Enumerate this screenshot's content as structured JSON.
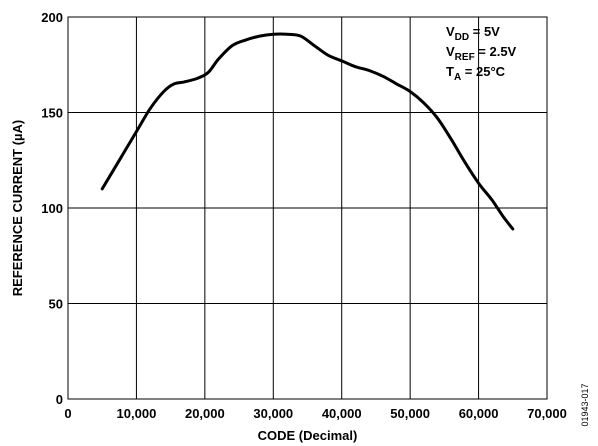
{
  "chart_data": {
    "type": "line",
    "xlabel": "CODE (Decimal)",
    "ylabel": "REFERENCE CURRENT (µA)",
    "xlim": [
      0,
      70000
    ],
    "ylim": [
      0,
      200
    ],
    "x_ticks": [
      0,
      10000,
      20000,
      30000,
      40000,
      50000,
      60000,
      70000
    ],
    "x_tick_labels": [
      "0",
      "10,000",
      "20,000",
      "30,000",
      "40,000",
      "50,000",
      "60,000",
      "70,000"
    ],
    "y_ticks": [
      0,
      50,
      100,
      150,
      200
    ],
    "y_tick_labels": [
      "0",
      "50",
      "100",
      "150",
      "200"
    ],
    "grid": true,
    "series": [
      {
        "x": [
          5000,
          7500,
          10000,
          12000,
          14000,
          15500,
          17000,
          19000,
          20500,
          22000,
          24000,
          26000,
          28000,
          30000,
          32000,
          34000,
          36000,
          38000,
          40000,
          42000,
          44000,
          46000,
          48000,
          50000,
          52000,
          54000,
          56000,
          58000,
          60000,
          62000,
          63500,
          65000
        ],
        "y": [
          110,
          125,
          140,
          152,
          161,
          165,
          166,
          168,
          171,
          178,
          185,
          188,
          190,
          191,
          191,
          190,
          185,
          180,
          177,
          174,
          172,
          169,
          165,
          161,
          155,
          147,
          136,
          124,
          113,
          104,
          96,
          89
        ],
        "color": "#000000"
      }
    ],
    "conditions": [
      {
        "main": "V",
        "sub": "DD",
        "rest": " = 5V"
      },
      {
        "main": "V",
        "sub": "REF",
        "rest": " = 2.5V"
      },
      {
        "main": "T",
        "sub": "A",
        "rest": " = 25°C"
      }
    ]
  },
  "figure_id": "01943-017"
}
